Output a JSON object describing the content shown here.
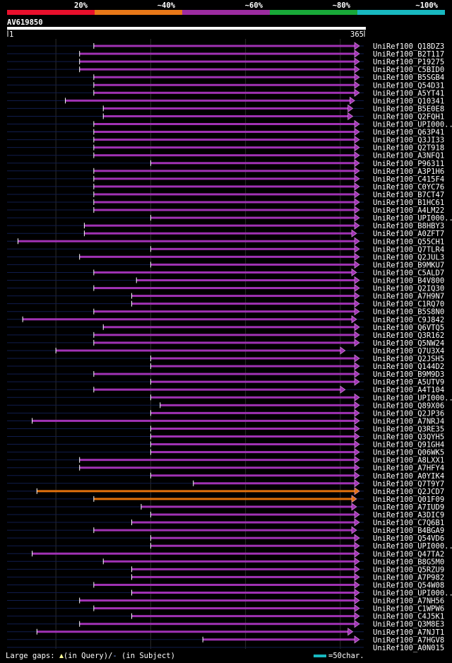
{
  "query_name": "AV619850",
  "query_start": "1",
  "query_end": "365",
  "legend": [
    {
      "label": "20%",
      "color": "#e8102c"
    },
    {
      "label": "~40%",
      "color": "#e87818"
    },
    {
      "label": "~60%",
      "color": "#9c2ca0"
    },
    {
      "label": "~80%",
      "color": "#18a838"
    },
    {
      "label": "~100%",
      "color": "#18b8c0"
    }
  ],
  "footer": {
    "gaps_label": "Large gaps: ",
    "in_query": "(in Query)/",
    "gap_dash": "-",
    "in_subject": " (in Subject)",
    "scale": "=50char."
  },
  "chart_data": {
    "type": "alignment",
    "query_length": 365,
    "hits": [
      {
        "name": "UniRef100_Q18DZ3",
        "start": 90,
        "end": 365,
        "color": "purple",
        "lead": true
      },
      {
        "name": "UniRef100_B2T117",
        "start": 75,
        "end": 365,
        "color": "purple",
        "lead": true
      },
      {
        "name": "UniRef100_P19275",
        "start": 75,
        "end": 365,
        "color": "purple",
        "lead": true
      },
      {
        "name": "UniRef100_C5BID0",
        "start": 75,
        "end": 365,
        "color": "purple",
        "lead": true
      },
      {
        "name": "UniRef100_B5SGB4",
        "start": 90,
        "end": 365,
        "color": "purple",
        "lead": true
      },
      {
        "name": "UniRef100_Q54D31",
        "start": 90,
        "end": 365,
        "color": "purple",
        "lead": true
      },
      {
        "name": "UniRef100_A5YT41",
        "start": 90,
        "end": 365,
        "color": "purple",
        "lead": true
      },
      {
        "name": "UniRef100_Q10341",
        "start": 60,
        "end": 360,
        "color": "purple",
        "lead": true
      },
      {
        "name": "UniRef100_B5E0E8",
        "start": 100,
        "end": 358,
        "color": "purple",
        "lead": true
      },
      {
        "name": "UniRef100_Q2FQH1",
        "start": 100,
        "end": 358,
        "color": "purple",
        "lead": true
      },
      {
        "name": "UniRef100_UPI000..",
        "start": 90,
        "end": 365,
        "color": "purple",
        "lead": true
      },
      {
        "name": "UniRef100_Q63P41",
        "start": 90,
        "end": 365,
        "color": "purple",
        "lead": true
      },
      {
        "name": "UniRef100_Q3JI33",
        "start": 90,
        "end": 365,
        "color": "purple",
        "lead": true
      },
      {
        "name": "UniRef100_Q2T918",
        "start": 90,
        "end": 365,
        "color": "purple",
        "lead": true
      },
      {
        "name": "UniRef100_A3NFQ1",
        "start": 90,
        "end": 365,
        "color": "purple",
        "lead": true
      },
      {
        "name": "UniRef100_P96311",
        "start": 150,
        "end": 365,
        "color": "purple",
        "lead": true
      },
      {
        "name": "UniRef100_A3P1H6",
        "start": 90,
        "end": 365,
        "color": "purple",
        "lead": true
      },
      {
        "name": "UniRef100_C415F4",
        "start": 90,
        "end": 365,
        "color": "purple",
        "lead": true
      },
      {
        "name": "UniRef100_C0YC76",
        "start": 90,
        "end": 365,
        "color": "purple",
        "lead": true
      },
      {
        "name": "UniRef100_B7CT47",
        "start": 90,
        "end": 365,
        "color": "purple",
        "lead": true
      },
      {
        "name": "UniRef100_B1HC61",
        "start": 90,
        "end": 365,
        "color": "purple",
        "lead": true
      },
      {
        "name": "UniRef100_A4LM22",
        "start": 90,
        "end": 365,
        "color": "purple",
        "lead": true
      },
      {
        "name": "UniRef100_UPI000..",
        "start": 150,
        "end": 365,
        "color": "purple",
        "lead": true
      },
      {
        "name": "UniRef100_B8HBY3",
        "start": 80,
        "end": 365,
        "color": "purple",
        "lead": true
      },
      {
        "name": "UniRef100_A0ZFT7",
        "start": 80,
        "end": 362,
        "color": "purple",
        "lead": true
      },
      {
        "name": "UniRef100_Q55CH1",
        "start": 10,
        "end": 365,
        "color": "purple",
        "lead": true
      },
      {
        "name": "UniRef100_Q7TLR4",
        "start": 150,
        "end": 365,
        "color": "purple",
        "lead": true
      },
      {
        "name": "UniRef100_Q2JUL3",
        "start": 75,
        "end": 365,
        "color": "purple",
        "lead": true
      },
      {
        "name": "UniRef100_B9MKU7",
        "start": 150,
        "end": 365,
        "color": "purple",
        "lead": true
      },
      {
        "name": "UniRef100_C5ALD7",
        "start": 90,
        "end": 362,
        "color": "purple",
        "lead": true
      },
      {
        "name": "UniRef100_B4V800",
        "start": 135,
        "end": 365,
        "color": "purple",
        "lead": true
      },
      {
        "name": "UniRef100_Q2IQ30",
        "start": 90,
        "end": 365,
        "color": "purple",
        "lead": true
      },
      {
        "name": "UniRef100_A7H9N7",
        "start": 130,
        "end": 365,
        "color": "purple",
        "lead": true
      },
      {
        "name": "UniRef100_C1RQ70",
        "start": 130,
        "end": 365,
        "color": "purple",
        "lead": true
      },
      {
        "name": "UniRef100_B5S8N0",
        "start": 90,
        "end": 365,
        "color": "purple",
        "lead": true
      },
      {
        "name": "UniRef100_C9J842",
        "start": 15,
        "end": 362,
        "color": "purple",
        "lead": true
      },
      {
        "name": "UniRef100_Q6VTQ5",
        "start": 100,
        "end": 365,
        "color": "purple",
        "lead": true
      },
      {
        "name": "UniRef100_Q3R162",
        "start": 90,
        "end": 365,
        "color": "purple",
        "lead": true
      },
      {
        "name": "UniRef100_Q5NW24",
        "start": 90,
        "end": 365,
        "color": "purple",
        "lead": true
      },
      {
        "name": "UniRef100_Q7U3X4",
        "start": 50,
        "end": 350,
        "color": "purple",
        "lead": true
      },
      {
        "name": "UniRef100_Q2JSH5",
        "start": 150,
        "end": 365,
        "color": "purple",
        "lead": true
      },
      {
        "name": "UniRef100_Q144D2",
        "start": 150,
        "end": 365,
        "color": "purple",
        "lead": true
      },
      {
        "name": "UniRef100_B9M9D3",
        "start": 90,
        "end": 365,
        "color": "purple",
        "lead": true
      },
      {
        "name": "UniRef100_A5UTV9",
        "start": 150,
        "end": 365,
        "color": "purple",
        "lead": true
      },
      {
        "name": "UniRef100_A4T104",
        "start": 90,
        "end": 350,
        "color": "purple",
        "lead": true
      },
      {
        "name": "UniRef100_UPI000..",
        "start": 150,
        "end": 365,
        "color": "purple",
        "lead": true
      },
      {
        "name": "UniRef100_Q89X06",
        "start": 160,
        "end": 365,
        "color": "purple",
        "lead": true
      },
      {
        "name": "UniRef100_Q2JP36",
        "start": 150,
        "end": 365,
        "color": "purple",
        "lead": true
      },
      {
        "name": "UniRef100_A7NRJ4",
        "start": 25,
        "end": 365,
        "color": "purple",
        "lead": true
      },
      {
        "name": "UniRef100_Q3RE35",
        "start": 150,
        "end": 365,
        "color": "purple",
        "lead": true
      },
      {
        "name": "UniRef100_Q3QYH5",
        "start": 150,
        "end": 365,
        "color": "purple",
        "lead": true
      },
      {
        "name": "UniRef100_Q91GH4",
        "start": 150,
        "end": 365,
        "color": "purple",
        "lead": true
      },
      {
        "name": "UniRef100_Q06WK5",
        "start": 150,
        "end": 365,
        "color": "purple",
        "lead": true
      },
      {
        "name": "UniRef100_A8LXX1",
        "start": 75,
        "end": 365,
        "color": "purple",
        "lead": true
      },
      {
        "name": "UniRef100_A7HFY4",
        "start": 75,
        "end": 365,
        "color": "purple",
        "lead": true
      },
      {
        "name": "UniRef100_A0YIK4",
        "start": 150,
        "end": 365,
        "color": "purple",
        "lead": true
      },
      {
        "name": "UniRef100_Q7T9Y7",
        "start": 195,
        "end": 365,
        "color": "purple",
        "lead": true
      },
      {
        "name": "UniRef100_Q2JCD7",
        "start": 30,
        "end": 365,
        "color": "orange",
        "lead": true
      },
      {
        "name": "UniRef100_Q01F09",
        "start": 90,
        "end": 362,
        "color": "orange",
        "lead": true
      },
      {
        "name": "UniRef100_A7IUD9",
        "start": 140,
        "end": 362,
        "color": "purple",
        "lead": true
      },
      {
        "name": "UniRef100_A3DIC9",
        "start": 150,
        "end": 365,
        "color": "purple",
        "lead": true
      },
      {
        "name": "UniRef100_C7Q6B1",
        "start": 130,
        "end": 365,
        "color": "purple",
        "lead": true
      },
      {
        "name": "UniRef100_B4BGA9",
        "start": 90,
        "end": 362,
        "color": "purple",
        "lead": true
      },
      {
        "name": "UniRef100_Q54VD6",
        "start": 150,
        "end": 365,
        "color": "purple",
        "lead": true
      },
      {
        "name": "UniRef100_UPI000..",
        "start": 150,
        "end": 365,
        "color": "purple",
        "lead": true
      },
      {
        "name": "UniRef100_Q47TA2",
        "start": 25,
        "end": 365,
        "color": "purple",
        "lead": true
      },
      {
        "name": "UniRef100_B8G5M0",
        "start": 100,
        "end": 365,
        "color": "purple",
        "lead": true
      },
      {
        "name": "UniRef100_Q5RZU9",
        "start": 130,
        "end": 365,
        "color": "purple",
        "lead": true
      },
      {
        "name": "UniRef100_A7P982",
        "start": 130,
        "end": 365,
        "color": "purple",
        "lead": true
      },
      {
        "name": "UniRef100_Q54W08",
        "start": 90,
        "end": 365,
        "color": "purple",
        "lead": true
      },
      {
        "name": "UniRef100_UPI000..",
        "start": 130,
        "end": 365,
        "color": "purple",
        "lead": true
      },
      {
        "name": "UniRef100_A7NH56",
        "start": 75,
        "end": 365,
        "color": "purple",
        "lead": true
      },
      {
        "name": "UniRef100_C1WPW6",
        "start": 90,
        "end": 365,
        "color": "purple",
        "lead": true
      },
      {
        "name": "UniRef100_C4J5K1",
        "start": 130,
        "end": 365,
        "color": "purple",
        "lead": true
      },
      {
        "name": "UniRef100_Q3M8E3",
        "start": 75,
        "end": 365,
        "color": "purple",
        "lead": true
      },
      {
        "name": "UniRef100_A7NJT1",
        "start": 30,
        "end": 358,
        "color": "purple",
        "lead": true
      },
      {
        "name": "UniRef100_A7HGV8",
        "start": 205,
        "end": 365,
        "color": "purple",
        "lead": true
      },
      {
        "name": "UniRef100_A0N015",
        "start": 0,
        "end": 0,
        "color": "none",
        "lead": true
      }
    ]
  }
}
